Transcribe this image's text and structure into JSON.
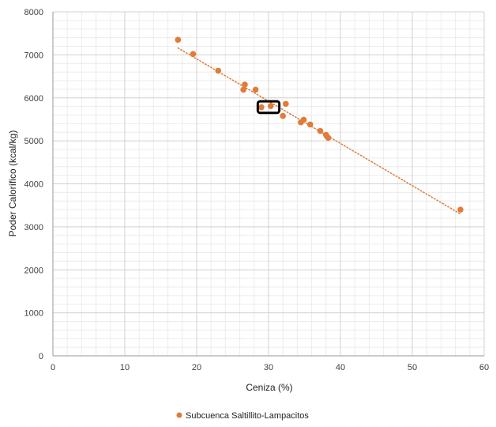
{
  "chart_data": {
    "type": "scatter",
    "xlabel": "Ceniza (%)",
    "ylabel": "Poder Calorífico (kcal/kg)",
    "xlim": [
      0,
      60
    ],
    "ylim": [
      0,
      8000
    ],
    "x_ticks": [
      0,
      10,
      20,
      30,
      40,
      50,
      60
    ],
    "y_ticks": [
      0,
      1000,
      2000,
      3000,
      4000,
      5000,
      6000,
      7000,
      8000
    ],
    "grid": "major and minor",
    "legend_position": "bottom",
    "series": [
      {
        "name": "Subcuenca Saltillito-Lampacitos",
        "color": "#E07B39",
        "points": [
          {
            "x": 17.4,
            "y": 7350
          },
          {
            "x": 19.5,
            "y": 7020
          },
          {
            "x": 23.0,
            "y": 6630
          },
          {
            "x": 26.5,
            "y": 6190
          },
          {
            "x": 26.7,
            "y": 6310
          },
          {
            "x": 28.2,
            "y": 6190
          },
          {
            "x": 29.0,
            "y": 5780
          },
          {
            "x": 30.3,
            "y": 5810
          },
          {
            "x": 32.0,
            "y": 5580
          },
          {
            "x": 32.4,
            "y": 5860
          },
          {
            "x": 34.5,
            "y": 5430
          },
          {
            "x": 34.9,
            "y": 5490
          },
          {
            "x": 35.8,
            "y": 5380
          },
          {
            "x": 37.2,
            "y": 5230
          },
          {
            "x": 38.0,
            "y": 5140
          },
          {
            "x": 38.1,
            "y": 5110
          },
          {
            "x": 38.3,
            "y": 5070
          },
          {
            "x": 56.7,
            "y": 3400
          }
        ]
      }
    ],
    "trendline": {
      "type": "linear",
      "style": "dotted",
      "color": "#E07B39",
      "from": {
        "x": 17.4,
        "y": 7160
      },
      "to": {
        "x": 56.7,
        "y": 3300
      }
    },
    "highlight_box": {
      "x_range": [
        28.5,
        31.5
      ],
      "y_range": [
        5650,
        5920
      ],
      "color": "#000000"
    }
  }
}
